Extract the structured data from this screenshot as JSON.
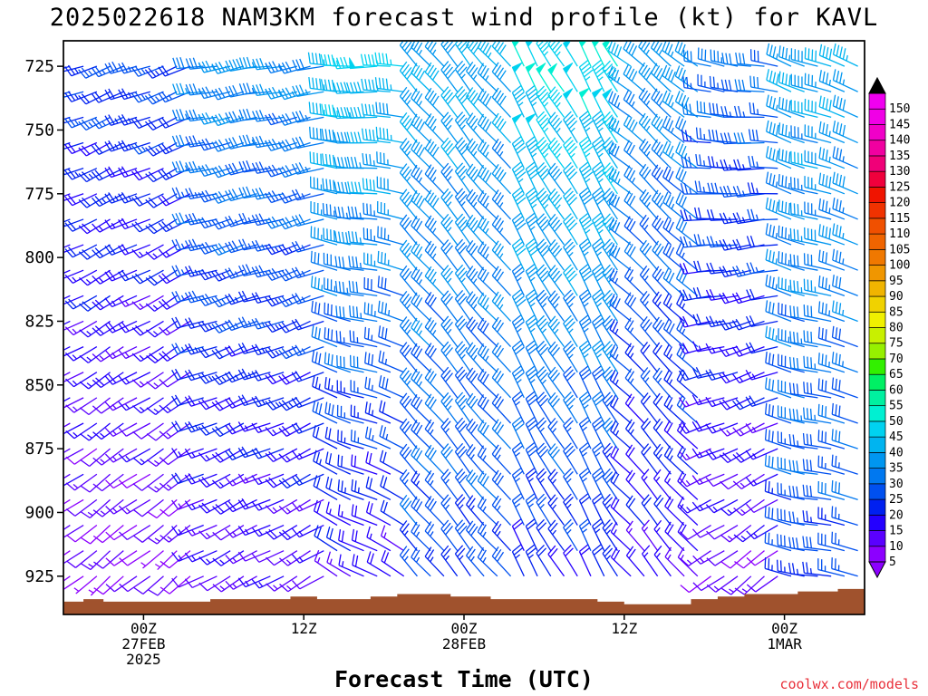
{
  "chart_data": {
    "type": "wind-barb",
    "title": "2025022618 NAM3KM forecast wind profile (kt) for KAVL",
    "xlabel": "Forecast Time (UTC)",
    "ylabel": "",
    "credit": "coolwx.com/models",
    "units": "kt",
    "y_ticks": [
      725,
      750,
      775,
      800,
      825,
      850,
      875,
      900,
      925
    ],
    "ylim": [
      940,
      715
    ],
    "x_ticks": [
      {
        "hour": 6,
        "lines": [
          "00Z",
          "27FEB",
          "2025"
        ]
      },
      {
        "hour": 18,
        "lines": [
          "12Z"
        ]
      },
      {
        "hour": 30,
        "lines": [
          "00Z",
          "28FEB"
        ]
      },
      {
        "hour": 42,
        "lines": [
          "12Z"
        ]
      },
      {
        "hour": 54,
        "lines": [
          "00Z",
          "1MAR"
        ]
      }
    ],
    "xlim": [
      0,
      60
    ],
    "colorbar": {
      "levels": [
        5,
        10,
        15,
        20,
        25,
        30,
        35,
        40,
        45,
        50,
        55,
        60,
        65,
        70,
        75,
        80,
        85,
        90,
        95,
        100,
        105,
        110,
        115,
        120,
        125,
        130,
        135,
        140,
        145,
        150
      ],
      "colors": [
        "#8c00ff",
        "#5a00ff",
        "#2400ff",
        "#0020f0",
        "#0050f0",
        "#0078f0",
        "#0096f0",
        "#00b4f0",
        "#00d2f0",
        "#00f0d2",
        "#00f0a0",
        "#00f064",
        "#32f000",
        "#96f000",
        "#c8f000",
        "#f0f000",
        "#f0d200",
        "#f0b400",
        "#f09600",
        "#f07800",
        "#f06400",
        "#f05000",
        "#f03200",
        "#f01400",
        "#f0003c",
        "#f00078",
        "#f000a0",
        "#f000c8",
        "#f000e6",
        "#f000f0"
      ]
    },
    "terrain": [
      {
        "hour": 0,
        "pressure": 935
      },
      {
        "hour": 1.5,
        "pressure": 934
      },
      {
        "hour": 3,
        "pressure": 935
      },
      {
        "hour": 6,
        "pressure": 935
      },
      {
        "hour": 9,
        "pressure": 935
      },
      {
        "hour": 11,
        "pressure": 934
      },
      {
        "hour": 15,
        "pressure": 934
      },
      {
        "hour": 17,
        "pressure": 933
      },
      {
        "hour": 19,
        "pressure": 934
      },
      {
        "hour": 23,
        "pressure": 933
      },
      {
        "hour": 25,
        "pressure": 932
      },
      {
        "hour": 29,
        "pressure": 933
      },
      {
        "hour": 32,
        "pressure": 934
      },
      {
        "hour": 38,
        "pressure": 934
      },
      {
        "hour": 40,
        "pressure": 935
      },
      {
        "hour": 42,
        "pressure": 936
      },
      {
        "hour": 45,
        "pressure": 936
      },
      {
        "hour": 47,
        "pressure": 934
      },
      {
        "hour": 49,
        "pressure": 933
      },
      {
        "hour": 51,
        "pressure": 932
      },
      {
        "hour": 55,
        "pressure": 931
      },
      {
        "hour": 58,
        "pressure": 930
      },
      {
        "hour": 60,
        "pressure": 930
      }
    ],
    "barb_grid": {
      "hour_start": 0.5,
      "hour_step": 1,
      "pressure_start": 725,
      "pressure_step": 10,
      "pressure_end": 935
    },
    "wind_regimes": [
      {
        "hours": [
          0,
          10
        ],
        "dir_top": 250,
        "dir_bottom": 230,
        "spd_top": 25,
        "spd_bottom": 8
      },
      {
        "hours": [
          10,
          20
        ],
        "dir_top": 260,
        "dir_bottom": 240,
        "spd_top": 35,
        "spd_bottom": 12
      },
      {
        "hours": [
          20,
          26
        ],
        "dir_top": 270,
        "dir_bottom": 300,
        "spd_top": 45,
        "spd_bottom": 15
      },
      {
        "hours": [
          26,
          34
        ],
        "dir_top": 320,
        "dir_bottom": 320,
        "spd_top": 40,
        "spd_bottom": 25
      },
      {
        "hours": [
          34,
          42
        ],
        "dir_top": 330,
        "dir_bottom": 330,
        "spd_top": 50,
        "spd_bottom": 20
      },
      {
        "hours": [
          42,
          48
        ],
        "dir_top": 310,
        "dir_bottom": 320,
        "spd_top": 38,
        "spd_bottom": 15
      },
      {
        "hours": [
          48,
          54
        ],
        "dir_top": 280,
        "dir_bottom": 230,
        "spd_top": 30,
        "spd_bottom": 10
      },
      {
        "hours": [
          54,
          60
        ],
        "dir_top": 290,
        "dir_bottom": 280,
        "spd_top": 40,
        "spd_bottom": 25
      }
    ],
    "grid": false,
    "colorbar_position": "right"
  }
}
